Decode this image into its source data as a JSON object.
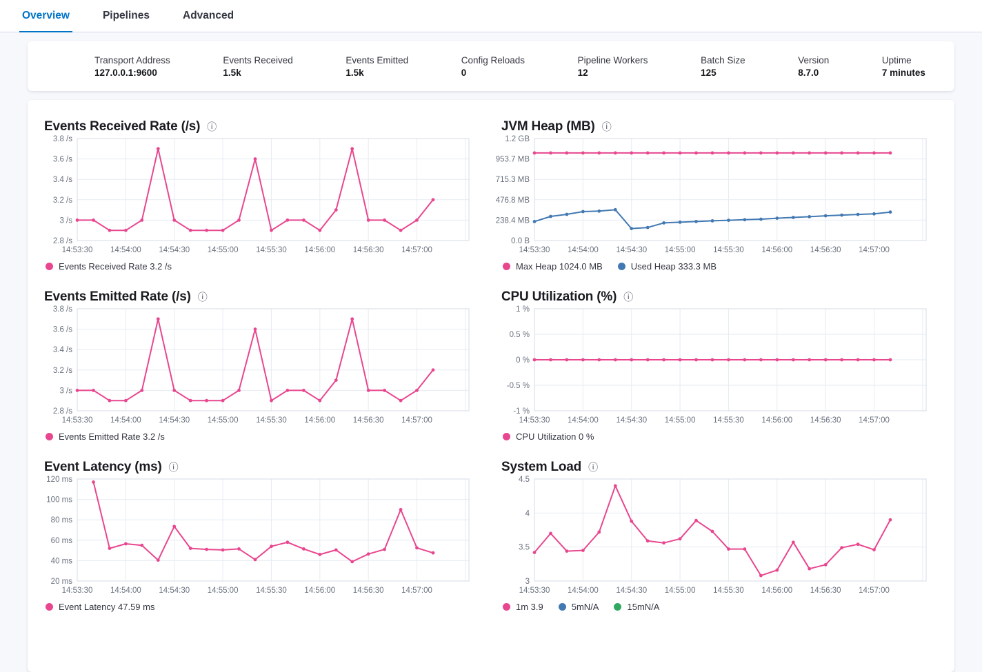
{
  "tabs": [
    {
      "label": "Overview",
      "active": true
    },
    {
      "label": "Pipelines",
      "active": false
    },
    {
      "label": "Advanced",
      "active": false
    }
  ],
  "stats": [
    {
      "label": "Transport Address",
      "value": "127.0.0.1:9600"
    },
    {
      "label": "Events Received",
      "value": "1.5k"
    },
    {
      "label": "Events Emitted",
      "value": "1.5k"
    },
    {
      "label": "Config Reloads",
      "value": "0"
    },
    {
      "label": "Pipeline Workers",
      "value": "12"
    },
    {
      "label": "Batch Size",
      "value": "125"
    },
    {
      "label": "Version",
      "value": "8.7.0"
    },
    {
      "label": "Uptime",
      "value": "7 minutes"
    }
  ],
  "ui": {
    "info_icon_glyph": "ⓘ"
  },
  "colors": {
    "pink": "#e8478f",
    "blue": "#4279b2",
    "green": "#30a862",
    "accent_blue": "#0073c7"
  },
  "chart_data": {
    "type": "line",
    "x_categories": [
      "14:53:30",
      "14:53:40",
      "14:53:50",
      "14:54:00",
      "14:54:10",
      "14:54:20",
      "14:54:30",
      "14:54:40",
      "14:54:50",
      "14:55:00",
      "14:55:10",
      "14:55:20",
      "14:55:30",
      "14:55:40",
      "14:55:50",
      "14:56:00",
      "14:56:10",
      "14:56:20",
      "14:56:30",
      "14:56:40",
      "14:56:50",
      "14:57:00",
      "14:57:10"
    ],
    "x_tick_indices": [
      0,
      3,
      6,
      9,
      12,
      15,
      18,
      21,
      24
    ],
    "charts": [
      {
        "slug": "events-received-rate",
        "title": "Events Received Rate (/s)",
        "y_min": 2.8,
        "y_max": 3.8,
        "y_ticks": [
          {
            "v": 3.8,
            "label": "3.8 /s"
          },
          {
            "v": 3.6,
            "label": "3.6 /s"
          },
          {
            "v": 3.4,
            "label": "3.4 /s"
          },
          {
            "v": 3.2,
            "label": "3.2 /s"
          },
          {
            "v": 3,
            "label": "3 /s"
          },
          {
            "v": 2.8,
            "label": "2.8 /s"
          }
        ],
        "series": [
          {
            "name": "Events Received Rate",
            "color": "pink",
            "values": [
              3,
              3,
              2.9,
              2.9,
              3,
              3.7,
              3,
              2.9,
              2.9,
              2.9,
              3,
              3.6,
              2.9,
              3,
              3,
              2.9,
              3.1,
              3.7,
              3,
              3,
              2.9,
              3,
              3.2
            ]
          }
        ],
        "legend": [
          {
            "color": "pink",
            "label": "Events Received Rate 3.2 /s"
          }
        ]
      },
      {
        "slug": "jvm-heap",
        "title": "JVM Heap (MB)",
        "y_min": 0,
        "y_max": 1192.1,
        "y_ticks": [
          {
            "v": 1192.1,
            "label": "1.2 GB"
          },
          {
            "v": 953.7,
            "label": "953.7 MB"
          },
          {
            "v": 715.3,
            "label": "715.3 MB"
          },
          {
            "v": 476.8,
            "label": "476.8 MB"
          },
          {
            "v": 238.4,
            "label": "238.4 MB"
          },
          {
            "v": 0,
            "label": "0.0 B"
          }
        ],
        "series": [
          {
            "name": "Max Heap",
            "color": "pink",
            "values": [
              1024,
              1024,
              1024,
              1024,
              1024,
              1024,
              1024,
              1024,
              1024,
              1024,
              1024,
              1024,
              1024,
              1024,
              1024,
              1024,
              1024,
              1024,
              1024,
              1024,
              1024,
              1024,
              1024
            ]
          },
          {
            "name": "Used Heap",
            "color": "blue",
            "values": [
              222,
              282,
              306,
              338,
              344,
              360,
              140,
              152,
              206,
              214,
              222,
              230,
              237,
              243,
              250,
              261,
              270,
              279,
              289,
              297,
              305,
              312,
              333
            ]
          }
        ],
        "legend": [
          {
            "color": "pink",
            "label": "Max Heap 1024.0 MB"
          },
          {
            "color": "blue",
            "label": "Used Heap 333.3 MB"
          }
        ]
      },
      {
        "slug": "events-emitted-rate",
        "title": "Events Emitted Rate (/s)",
        "y_min": 2.8,
        "y_max": 3.8,
        "y_ticks": [
          {
            "v": 3.8,
            "label": "3.8 /s"
          },
          {
            "v": 3.6,
            "label": "3.6 /s"
          },
          {
            "v": 3.4,
            "label": "3.4 /s"
          },
          {
            "v": 3.2,
            "label": "3.2 /s"
          },
          {
            "v": 3,
            "label": "3 /s"
          },
          {
            "v": 2.8,
            "label": "2.8 /s"
          }
        ],
        "series": [
          {
            "name": "Events Emitted Rate",
            "color": "pink",
            "values": [
              3,
              3,
              2.9,
              2.9,
              3,
              3.7,
              3,
              2.9,
              2.9,
              2.9,
              3,
              3.6,
              2.9,
              3,
              3,
              2.9,
              3.1,
              3.7,
              3,
              3,
              2.9,
              3,
              3.2
            ]
          }
        ],
        "legend": [
          {
            "color": "pink",
            "label": "Events Emitted Rate 3.2 /s"
          }
        ]
      },
      {
        "slug": "cpu-utilization",
        "title": "CPU Utilization (%)",
        "y_min": -1,
        "y_max": 1,
        "y_ticks": [
          {
            "v": 1,
            "label": "1 %"
          },
          {
            "v": 0.5,
            "label": "0.5 %"
          },
          {
            "v": 0,
            "label": "0 %"
          },
          {
            "v": -0.5,
            "label": "-0.5 %"
          },
          {
            "v": -1,
            "label": "-1 %"
          }
        ],
        "series": [
          {
            "name": "CPU Utilization",
            "color": "pink",
            "values": [
              0,
              0,
              0,
              0,
              0,
              0,
              0,
              0,
              0,
              0,
              0,
              0,
              0,
              0,
              0,
              0,
              0,
              0,
              0,
              0,
              0,
              0,
              0
            ]
          }
        ],
        "legend": [
          {
            "color": "pink",
            "label": "CPU Utilization 0 %"
          }
        ]
      },
      {
        "slug": "event-latency",
        "title": "Event Latency (ms)",
        "y_min": 20,
        "y_max": 120,
        "y_ticks": [
          {
            "v": 120,
            "label": "120 ms"
          },
          {
            "v": 100,
            "label": "100 ms"
          },
          {
            "v": 80,
            "label": "80 ms"
          },
          {
            "v": 60,
            "label": "60 ms"
          },
          {
            "v": 40,
            "label": "40 ms"
          },
          {
            "v": 20,
            "label": "20 ms"
          }
        ],
        "series": [
          {
            "name": "Event Latency",
            "color": "pink",
            "values": [
              null,
              117,
              52,
              56.5,
              55,
              40.5,
              73.5,
              52,
              51,
              50.5,
              51.5,
              41,
              54,
              58,
              51.5,
              46,
              50.5,
              39,
              46.5,
              51,
              90,
              52.5,
              47.59
            ]
          }
        ],
        "legend": [
          {
            "color": "pink",
            "label": "Event Latency 47.59 ms"
          }
        ]
      },
      {
        "slug": "system-load",
        "title": "System Load",
        "y_min": 3,
        "y_max": 4.5,
        "y_ticks": [
          {
            "v": 4.5,
            "label": "4.5"
          },
          {
            "v": 4,
            "label": "4"
          },
          {
            "v": 3.5,
            "label": "3.5"
          },
          {
            "v": 3,
            "label": "3"
          }
        ],
        "series": [
          {
            "name": "1m",
            "color": "pink",
            "values": [
              3.42,
              3.7,
              3.44,
              3.45,
              3.72,
              4.4,
              3.88,
              3.59,
              3.56,
              3.62,
              3.89,
              3.73,
              3.47,
              3.47,
              3.08,
              3.16,
              3.57,
              3.18,
              3.24,
              3.49,
              3.54,
              3.46,
              3.9
            ]
          }
        ],
        "legend": [
          {
            "color": "pink",
            "label": "1m 3.9"
          },
          {
            "color": "blue",
            "label": "5mN/A"
          },
          {
            "color": "green",
            "label": "15mN/A"
          }
        ]
      }
    ]
  }
}
